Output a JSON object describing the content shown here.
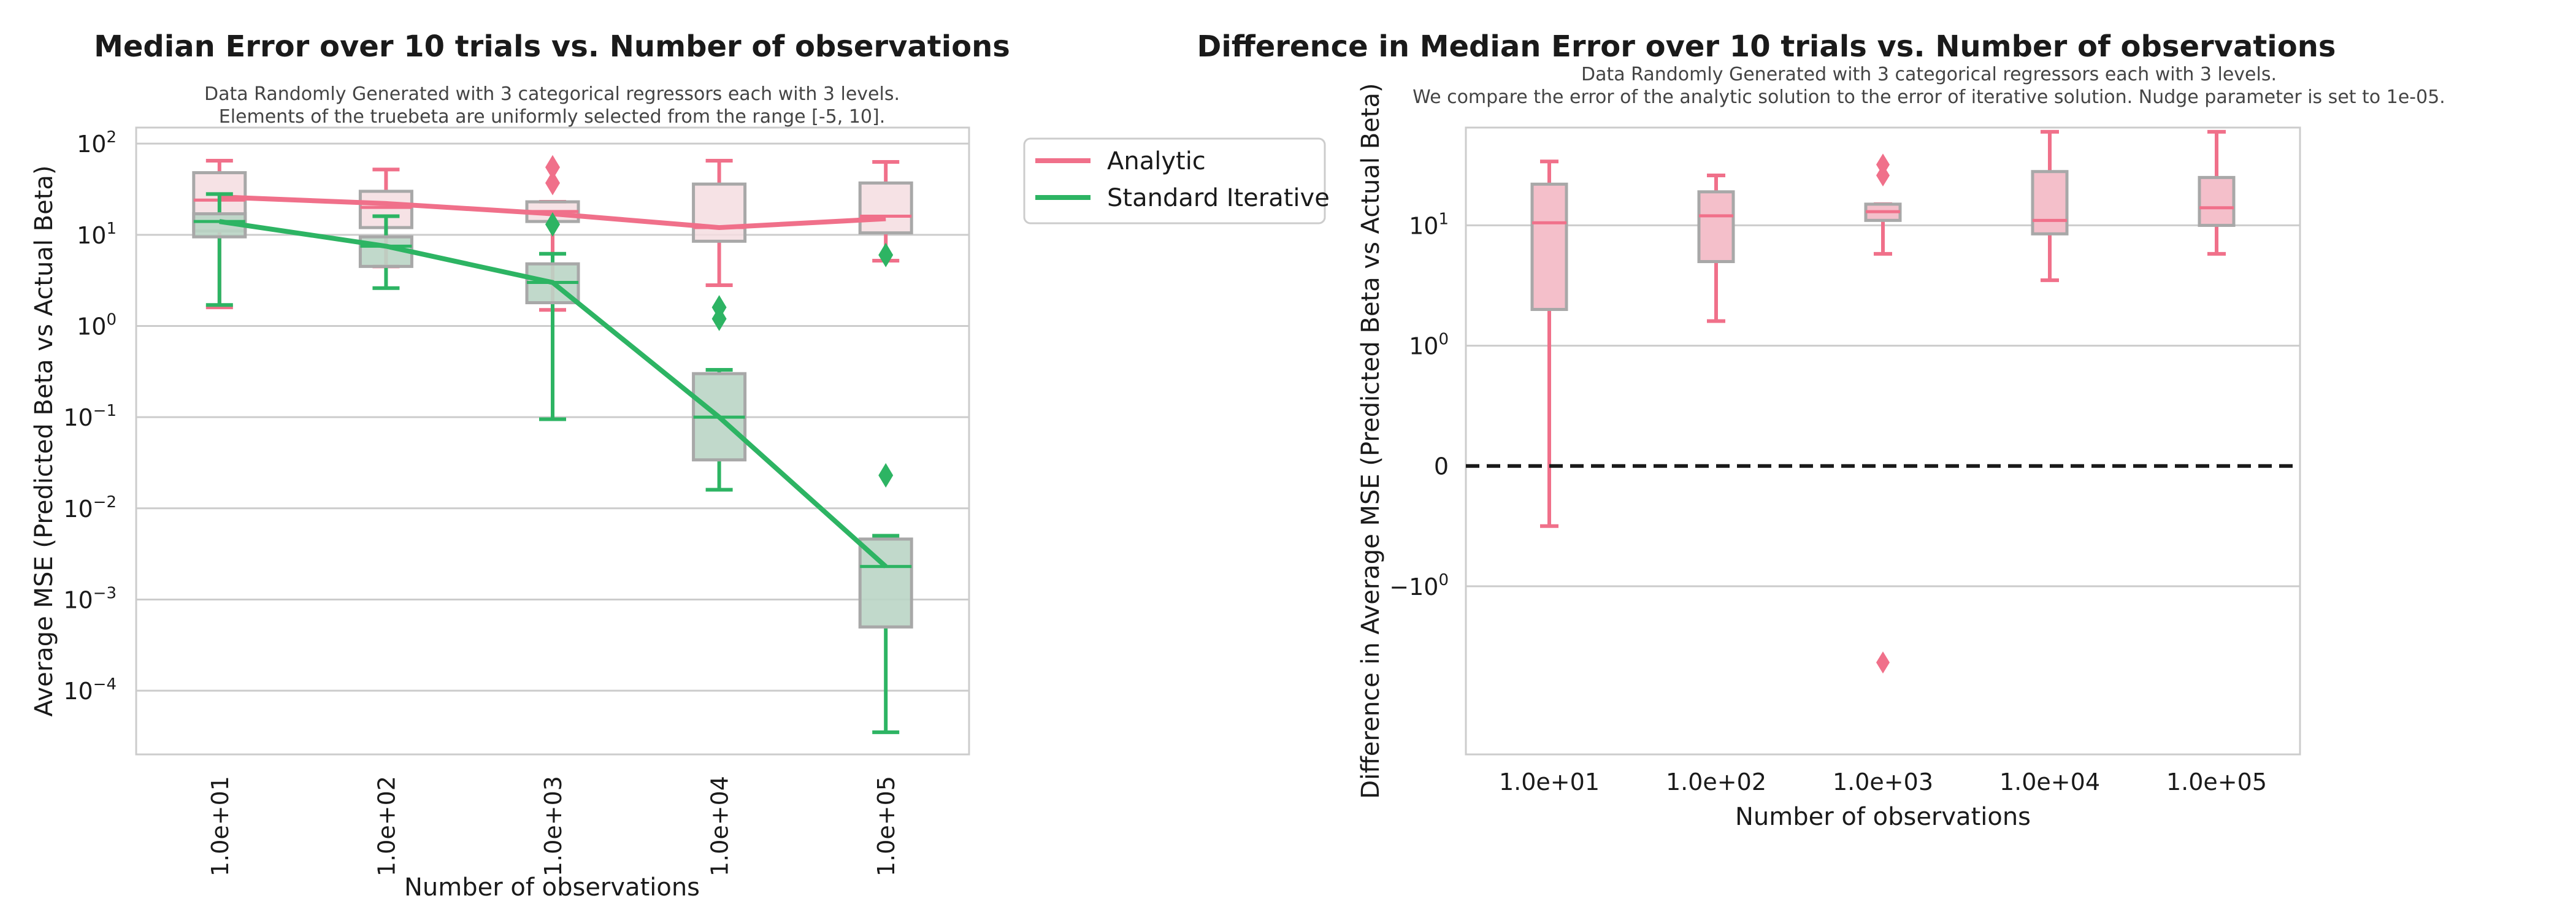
{
  "chart_data": [
    {
      "type": "box",
      "title": "Median Error over 10 trials vs. Number of observations",
      "subtitle": [
        "Data Randomly Generated with 3 categorical regressors each with 3 levels.",
        "Elements of the truebeta are uniformly selected from the range [-5, 10]."
      ],
      "xlabel": "Number of observations",
      "ylabel": "Average MSE (Predicted Beta vs Actual Beta)",
      "yscale": "log",
      "ylim": [
        2e-05,
        150
      ],
      "yticks": [
        {
          "value": 0.0001,
          "base": "10",
          "exp": "−4"
        },
        {
          "value": 0.001,
          "base": "10",
          "exp": "−3"
        },
        {
          "value": 0.01,
          "base": "10",
          "exp": "−2"
        },
        {
          "value": 0.1,
          "base": "10",
          "exp": "−1"
        },
        {
          "value": 1,
          "base": "10",
          "exp": "0"
        },
        {
          "value": 10,
          "base": "10",
          "exp": "1"
        },
        {
          "value": 100,
          "base": "10",
          "exp": "2"
        }
      ],
      "categories": [
        "1.0e+01",
        "1.0e+02",
        "1.0e+03",
        "1.0e+04",
        "1.0e+05"
      ],
      "grid": true,
      "legend": {
        "placement": "outside-right",
        "entries": [
          "Analytic",
          "Standard Iterative"
        ]
      },
      "series": [
        {
          "name": "Analytic",
          "color": "#f0708a",
          "box_fill": "#f5dde1",
          "boxes": [
            {
              "whisker_low": 1.6,
              "q1": 11,
              "median": 24,
              "q3": 48,
              "whisker_high": 65,
              "outliers": []
            },
            {
              "whisker_low": 4.5,
              "q1": 12,
              "median": 20,
              "q3": 30,
              "whisker_high": 52,
              "outliers": []
            },
            {
              "whisker_low": 1.5,
              "q1": 14,
              "median": 18,
              "q3": 23,
              "whisker_high": 23,
              "outliers": [
                37,
                55
              ]
            },
            {
              "whisker_low": 2.8,
              "q1": 8.5,
              "median": 12,
              "q3": 36,
              "whisker_high": 65,
              "outliers": []
            },
            {
              "whisker_low": 5.2,
              "q1": 10.5,
              "median": 16,
              "q3": 37,
              "whisker_high": 63,
              "outliers": []
            }
          ],
          "line": [
            26,
            22,
            17,
            12,
            15
          ]
        },
        {
          "name": "Standard Iterative",
          "color": "#2db463",
          "box_fill": "#bad5c5",
          "boxes": [
            {
              "whisker_low": 1.7,
              "q1": 9.5,
              "median": 14,
              "q3": 17,
              "whisker_high": 28,
              "outliers": []
            },
            {
              "whisker_low": 2.6,
              "q1": 4.5,
              "median": 7.5,
              "q3": 9.5,
              "whisker_high": 16,
              "outliers": []
            },
            {
              "whisker_low": 0.095,
              "q1": 1.8,
              "median": 3,
              "q3": 4.8,
              "whisker_high": 6.2,
              "outliers": [
                13
              ]
            },
            {
              "whisker_low": 0.016,
              "q1": 0.034,
              "median": 0.1,
              "q3": 0.3,
              "whisker_high": 0.33,
              "outliers": [
                1.2,
                1.6
              ]
            },
            {
              "whisker_low": 3.5e-05,
              "q1": 0.0005,
              "median": 0.0023,
              "q3": 0.0046,
              "whisker_high": 0.005,
              "outliers": [
                0.023,
                6
              ]
            }
          ],
          "line": [
            14,
            7.5,
            3,
            0.1,
            0.0023
          ]
        }
      ]
    },
    {
      "type": "box",
      "title": "Difference in Median Error over 10 trials vs. Number of observations",
      "subtitle": [
        "Data Randomly Generated with 3 categorical regressors each with 3 levels.",
        "We compare the error of the analytic solution to the error of iterative solution. Nudge parameter is set to 1e-05."
      ],
      "xlabel": "Number of observations",
      "ylabel": "Difference in Average MSE (Predicted Beta vs Actual Beta)",
      "yscale": "symlog",
      "ylim": [
        -25,
        65
      ],
      "yticks": [
        {
          "value": -1,
          "base": "−10",
          "exp": "0"
        },
        {
          "value": 0,
          "base": "0",
          "exp": ""
        },
        {
          "value": 1,
          "base": "10",
          "exp": "0"
        },
        {
          "value": 10,
          "base": "10",
          "exp": "1"
        }
      ],
      "categories": [
        "1.0e+01",
        "1.0e+02",
        "1.0e+03",
        "1.0e+04",
        "1.0e+05"
      ],
      "grid": true,
      "reference_line": {
        "value": 0,
        "style": "dashed",
        "color": "#1a1a1a"
      },
      "series": [
        {
          "color": "#f0708a",
          "box_fill": "#f4bfca",
          "boxes": [
            {
              "whisker_low": -0.5,
              "q1": 2,
              "median": 10.5,
              "q3": 22,
              "whisker_high": 34,
              "outliers": []
            },
            {
              "whisker_low": 1.6,
              "q1": 5,
              "median": 12,
              "q3": 19,
              "whisker_high": 26,
              "outliers": []
            },
            {
              "whisker_low": 5.8,
              "q1": 11,
              "median": 13,
              "q3": 15,
              "whisker_high": 15,
              "outliers": [
                26,
                32,
                -4.3
              ]
            },
            {
              "whisker_low": 3.5,
              "q1": 8.5,
              "median": 11,
              "q3": 28,
              "whisker_high": 60,
              "outliers": []
            },
            {
              "whisker_low": 5.8,
              "q1": 10,
              "median": 14,
              "q3": 25,
              "whisker_high": 60,
              "outliers": []
            }
          ]
        }
      ]
    }
  ]
}
